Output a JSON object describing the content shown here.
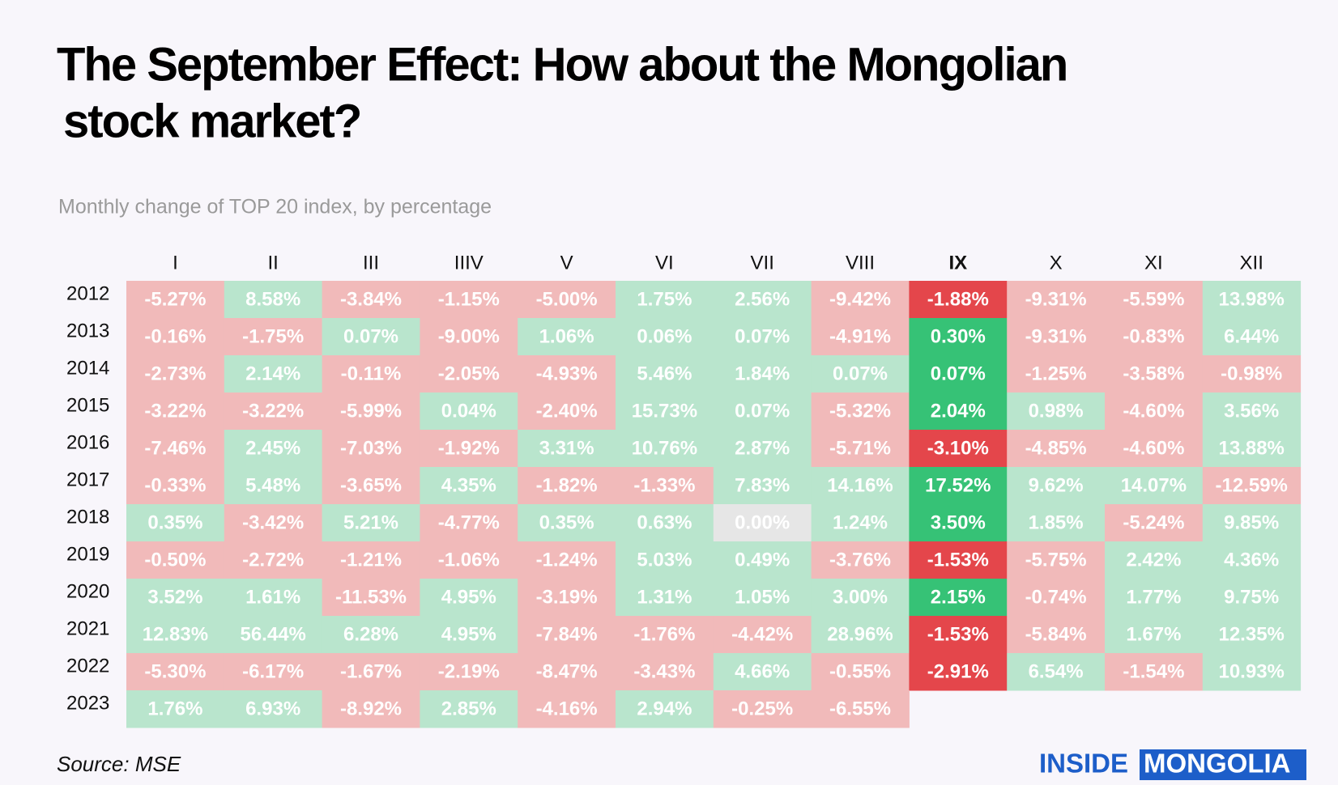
{
  "header": {
    "title_line1": "The September Effect: How about the Mongolian",
    "title_line2": "stock market?",
    "subtitle": "Monthly change of TOP 20 index, by percentage"
  },
  "table": {
    "columns": [
      "I",
      "II",
      "III",
      "IIIV",
      "V",
      "VI",
      "VII",
      "VIII",
      "IX",
      "X",
      "XI",
      "XII"
    ],
    "highlight_column": 8,
    "colors": {
      "positive": "#b9e5cd",
      "negative": "#f1baba",
      "zero": "#e6e6e6",
      "highlight_positive": "#36c276",
      "highlight_negative": "#e4464b"
    },
    "rows": [
      {
        "year": "2012",
        "cells": [
          "-5.27%",
          "8.58%",
          "-3.84%",
          "-1.15%",
          "-5.00%",
          "1.75%",
          "2.56%",
          "-9.42%",
          "-1.88%",
          "-9.31%",
          "-5.59%",
          "13.98%"
        ]
      },
      {
        "year": "2013",
        "cells": [
          "-0.16%",
          "-1.75%",
          "0.07%",
          "-9.00%",
          "1.06%",
          "0.06%",
          "0.07%",
          "-4.91%",
          "0.30%",
          "-9.31%",
          "-0.83%",
          "6.44%"
        ]
      },
      {
        "year": "2014",
        "cells": [
          "-2.73%",
          "2.14%",
          "-0.11%",
          "-2.05%",
          "-4.93%",
          "5.46%",
          "1.84%",
          "0.07%",
          "0.07%",
          "-1.25%",
          "-3.58%",
          "-0.98%"
        ]
      },
      {
        "year": "2015",
        "cells": [
          "-3.22%",
          "-3.22%",
          "-5.99%",
          "0.04%",
          "-2.40%",
          "15.73%",
          "0.07%",
          "-5.32%",
          "2.04%",
          "0.98%",
          "-4.60%",
          "3.56%"
        ]
      },
      {
        "year": "2016",
        "cells": [
          "-7.46%",
          "2.45%",
          "-7.03%",
          "-1.92%",
          "3.31%",
          "10.76%",
          "2.87%",
          "-5.71%",
          "-3.10%",
          "-4.85%",
          "-4.60%",
          "13.88%"
        ]
      },
      {
        "year": "2017",
        "cells": [
          "-0.33%",
          "5.48%",
          "-3.65%",
          "4.35%",
          "-1.82%",
          "-1.33%",
          "7.83%",
          "14.16%",
          "17.52%",
          "9.62%",
          "14.07%",
          "-12.59%"
        ]
      },
      {
        "year": "2018",
        "cells": [
          "0.35%",
          "-3.42%",
          "5.21%",
          "-4.77%",
          "0.35%",
          "0.63%",
          "0.00%",
          "1.24%",
          "3.50%",
          "1.85%",
          "-5.24%",
          "9.85%"
        ]
      },
      {
        "year": "2019",
        "cells": [
          "-0.50%",
          "-2.72%",
          "-1.21%",
          "-1.06%",
          "-1.24%",
          "5.03%",
          "0.49%",
          "-3.76%",
          "-1.53%",
          "-5.75%",
          "2.42%",
          "4.36%"
        ]
      },
      {
        "year": "2020",
        "cells": [
          "3.52%",
          "1.61%",
          "-11.53%",
          "4.95%",
          "-3.19%",
          "1.31%",
          "1.05%",
          "3.00%",
          "2.15%",
          "-0.74%",
          "1.77%",
          "9.75%"
        ]
      },
      {
        "year": "2021",
        "cells": [
          "12.83%",
          "56.44%",
          "6.28%",
          "4.95%",
          "-7.84%",
          "-1.76%",
          "-4.42%",
          "28.96%",
          "-1.53%",
          "-5.84%",
          "1.67%",
          "12.35%"
        ]
      },
      {
        "year": "2022",
        "cells": [
          "-5.30%",
          "-6.17%",
          "-1.67%",
          "-2.19%",
          "-8.47%",
          "-3.43%",
          "4.66%",
          "-0.55%",
          "-2.91%",
          "6.54%",
          "-1.54%",
          "10.93%"
        ]
      },
      {
        "year": "2023",
        "cells": [
          "1.76%",
          "6.93%",
          "-8.92%",
          "2.85%",
          "-4.16%",
          "2.94%",
          "-0.25%",
          "-6.55%"
        ]
      }
    ]
  },
  "footer": {
    "source": "Source: MSE",
    "logo_left": "INSIDE",
    "logo_right": "MONGOLIA"
  }
}
